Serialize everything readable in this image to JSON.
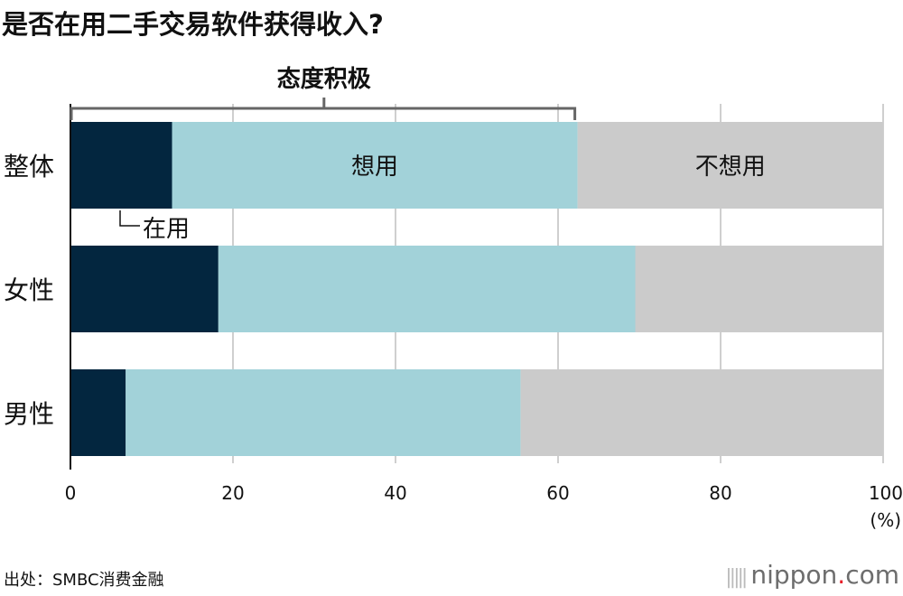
{
  "chart_data": {
    "type": "bar",
    "stacked": true,
    "orientation": "horizontal",
    "title": "是否在用二手交易软件获得收入?",
    "categories": [
      "整体",
      "女性",
      "男性"
    ],
    "series": [
      {
        "name": "在用",
        "values": [
          12.5,
          18.2,
          6.8
        ],
        "color": "#03263f"
      },
      {
        "name": "想用",
        "values": [
          49.9,
          51.3,
          48.6
        ],
        "color": "#a2d2d9"
      },
      {
        "name": "不想用",
        "values": [
          37.6,
          30.5,
          44.6
        ],
        "color": "#cbcbcb"
      }
    ],
    "xlim": [
      0,
      100
    ],
    "xticks": [
      "0",
      "20",
      "40",
      "60",
      "80",
      "100"
    ],
    "xunit": "(%)",
    "grid": true,
    "bracket_label": "态度积极",
    "source": "出处：SMBC消费金融"
  },
  "logo": {
    "text_main": "nippon",
    "text_dot": ".",
    "text_end": "com"
  }
}
